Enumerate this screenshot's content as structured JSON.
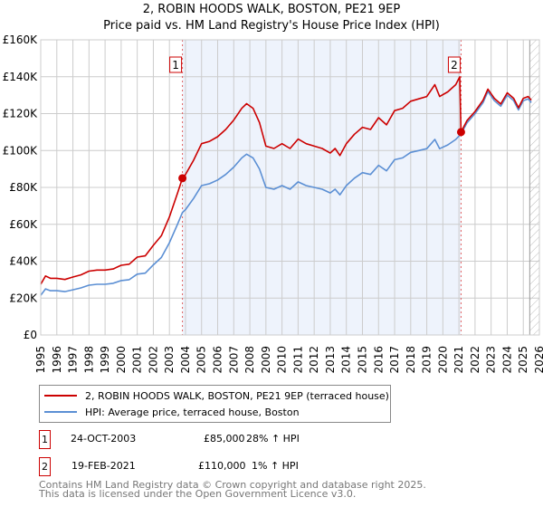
{
  "title_line1": "2, ROBIN HOODS WALK, BOSTON, PE21 9EP",
  "title_line2": "Price paid vs. HM Land Registry's House Price Index (HPI)",
  "colors": {
    "property": "#cc0000",
    "hpi": "#5b8fd4",
    "shade": "#eef3fc",
    "grid": "#cccccc"
  },
  "chart_data": {
    "type": "line",
    "xlim": [
      1995,
      2026
    ],
    "ylim": [
      0,
      160000
    ],
    "x_ticks": [
      "1995",
      "1996",
      "1997",
      "1998",
      "1999",
      "2000",
      "2001",
      "2002",
      "2003",
      "2004",
      "2005",
      "2006",
      "2007",
      "2008",
      "2009",
      "2010",
      "2011",
      "2012",
      "2013",
      "2014",
      "2015",
      "2016",
      "2017",
      "2018",
      "2019",
      "2020",
      "2021",
      "2022",
      "2023",
      "2024",
      "2025",
      "2026"
    ],
    "y_ticks": [
      {
        "v": 0,
        "label": "£0"
      },
      {
        "v": 20000,
        "label": "£20K"
      },
      {
        "v": 40000,
        "label": "£40K"
      },
      {
        "v": 60000,
        "label": "£60K"
      },
      {
        "v": 80000,
        "label": "£80K"
      },
      {
        "v": 100000,
        "label": "£100K"
      },
      {
        "v": 120000,
        "label": "£120K"
      },
      {
        "v": 140000,
        "label": "£140K"
      },
      {
        "v": 160000,
        "label": "£160K"
      }
    ],
    "grid": true,
    "shaded_range": [
      2003.81,
      2021.13
    ],
    "hatched_from": 2025.4,
    "series": [
      {
        "name": "2, ROBIN HOODS WALK, BOSTON, PE21 9EP (terraced house)",
        "color": "#cc0000",
        "points": [
          [
            1995.0,
            27.5
          ],
          [
            1995.3,
            32
          ],
          [
            1995.6,
            30.7
          ],
          [
            1996.0,
            30.7
          ],
          [
            1996.5,
            30.1
          ],
          [
            1997.0,
            31.4
          ],
          [
            1997.5,
            32.6
          ],
          [
            1998.0,
            34.6
          ],
          [
            1998.5,
            35.2
          ],
          [
            1999.0,
            35.2
          ],
          [
            1999.5,
            35.8
          ],
          [
            2000.0,
            37.8
          ],
          [
            2000.5,
            38.4
          ],
          [
            2001.0,
            42.2
          ],
          [
            2001.5,
            42.9
          ],
          [
            2002.0,
            48.6
          ],
          [
            2002.5,
            53.8
          ],
          [
            2003.0,
            64
          ],
          [
            2003.5,
            76.8
          ],
          [
            2003.81,
            85
          ],
          [
            2004.0,
            87
          ],
          [
            2004.5,
            94.7
          ],
          [
            2005.0,
            103.7
          ],
          [
            2005.5,
            105
          ],
          [
            2006.0,
            107.5
          ],
          [
            2006.5,
            111.4
          ],
          [
            2007.0,
            116.5
          ],
          [
            2007.5,
            122.9
          ],
          [
            2007.8,
            125.4
          ],
          [
            2008.2,
            122.9
          ],
          [
            2008.6,
            115.2
          ],
          [
            2009.0,
            102.4
          ],
          [
            2009.5,
            101.1
          ],
          [
            2010.0,
            103.7
          ],
          [
            2010.5,
            101.1
          ],
          [
            2011.0,
            106.2
          ],
          [
            2011.5,
            103.7
          ],
          [
            2012.0,
            102.4
          ],
          [
            2012.5,
            101.1
          ],
          [
            2013.0,
            98.6
          ],
          [
            2013.3,
            101.1
          ],
          [
            2013.6,
            97.3
          ],
          [
            2014.0,
            103.7
          ],
          [
            2014.5,
            108.8
          ],
          [
            2015.0,
            112.6
          ],
          [
            2015.5,
            111.4
          ],
          [
            2016.0,
            117.8
          ],
          [
            2016.5,
            113.9
          ],
          [
            2017.0,
            121.6
          ],
          [
            2017.5,
            122.9
          ],
          [
            2018.0,
            126.7
          ],
          [
            2018.5,
            128
          ],
          [
            2019.0,
            129.3
          ],
          [
            2019.5,
            135.7
          ],
          [
            2019.8,
            129.3
          ],
          [
            2020.3,
            131.8
          ],
          [
            2020.8,
            135.7
          ],
          [
            2021.05,
            140
          ],
          [
            2021.13,
            110
          ],
          [
            2021.5,
            116.2
          ],
          [
            2022.0,
            121.2
          ],
          [
            2022.5,
            127.3
          ],
          [
            2022.8,
            133.3
          ],
          [
            2023.2,
            128.3
          ],
          [
            2023.6,
            125.2
          ],
          [
            2024.0,
            131.3
          ],
          [
            2024.4,
            128.3
          ],
          [
            2024.7,
            123.2
          ],
          [
            2025.0,
            128.3
          ],
          [
            2025.3,
            129.3
          ],
          [
            2025.5,
            127.3
          ]
        ]
      },
      {
        "name": "HPI: Average price, terraced house, Boston",
        "color": "#5b8fd4",
        "points": [
          [
            1995.0,
            21.5
          ],
          [
            1995.3,
            25
          ],
          [
            1995.6,
            24
          ],
          [
            1996.0,
            24
          ],
          [
            1996.5,
            23.5
          ],
          [
            1997.0,
            24.5
          ],
          [
            1997.5,
            25.5
          ],
          [
            1998.0,
            27
          ],
          [
            1998.5,
            27.5
          ],
          [
            1999.0,
            27.5
          ],
          [
            1999.5,
            28
          ],
          [
            2000.0,
            29.5
          ],
          [
            2000.5,
            30
          ],
          [
            2001.0,
            33
          ],
          [
            2001.5,
            33.5
          ],
          [
            2002.0,
            38
          ],
          [
            2002.5,
            42
          ],
          [
            2003.0,
            50
          ],
          [
            2003.5,
            60
          ],
          [
            2003.81,
            66.4
          ],
          [
            2004.0,
            68
          ],
          [
            2004.5,
            74
          ],
          [
            2005.0,
            81
          ],
          [
            2005.5,
            82
          ],
          [
            2006.0,
            84
          ],
          [
            2006.5,
            87
          ],
          [
            2007.0,
            91
          ],
          [
            2007.5,
            96
          ],
          [
            2007.8,
            98
          ],
          [
            2008.2,
            96
          ],
          [
            2008.6,
            90
          ],
          [
            2009.0,
            80
          ],
          [
            2009.5,
            79
          ],
          [
            2010.0,
            81
          ],
          [
            2010.5,
            79
          ],
          [
            2011.0,
            83
          ],
          [
            2011.5,
            81
          ],
          [
            2012.0,
            80
          ],
          [
            2012.5,
            79
          ],
          [
            2013.0,
            77
          ],
          [
            2013.3,
            79
          ],
          [
            2013.6,
            76
          ],
          [
            2014.0,
            81
          ],
          [
            2014.5,
            85
          ],
          [
            2015.0,
            88
          ],
          [
            2015.5,
            87
          ],
          [
            2016.0,
            92
          ],
          [
            2016.5,
            89
          ],
          [
            2017.0,
            95
          ],
          [
            2017.5,
            96
          ],
          [
            2018.0,
            99
          ],
          [
            2018.5,
            100
          ],
          [
            2019.0,
            101
          ],
          [
            2019.5,
            106
          ],
          [
            2019.8,
            101
          ],
          [
            2020.3,
            103
          ],
          [
            2020.8,
            106
          ],
          [
            2021.13,
            109
          ],
          [
            2021.5,
            115
          ],
          [
            2022.0,
            120
          ],
          [
            2022.5,
            126
          ],
          [
            2022.8,
            132
          ],
          [
            2023.2,
            127
          ],
          [
            2023.6,
            124
          ],
          [
            2024.0,
            130
          ],
          [
            2024.4,
            127
          ],
          [
            2024.7,
            122
          ],
          [
            2025.0,
            127
          ],
          [
            2025.3,
            128
          ],
          [
            2025.5,
            126
          ]
        ]
      }
    ],
    "value_unit": "thousands GBP",
    "sales": [
      {
        "label": "1",
        "x": 2003.81,
        "value": 85000
      },
      {
        "label": "2",
        "x": 2021.13,
        "value": 110000
      }
    ]
  },
  "legend": {
    "property": "2, ROBIN HOODS WALK, BOSTON, PE21 9EP (terraced house)",
    "hpi": "HPI: Average price, terraced house, Boston"
  },
  "transactions": [
    {
      "num": "1",
      "date": "24-OCT-2003",
      "price": "£85,000",
      "hpi": "28% ↑ HPI"
    },
    {
      "num": "2",
      "date": "19-FEB-2021",
      "price": "£110,000",
      "hpi": "1% ↑ HPI"
    }
  ],
  "footer": {
    "line1": "Contains HM Land Registry data © Crown copyright and database right 2025.",
    "line2": "This data is licensed under the Open Government Licence v3.0."
  }
}
